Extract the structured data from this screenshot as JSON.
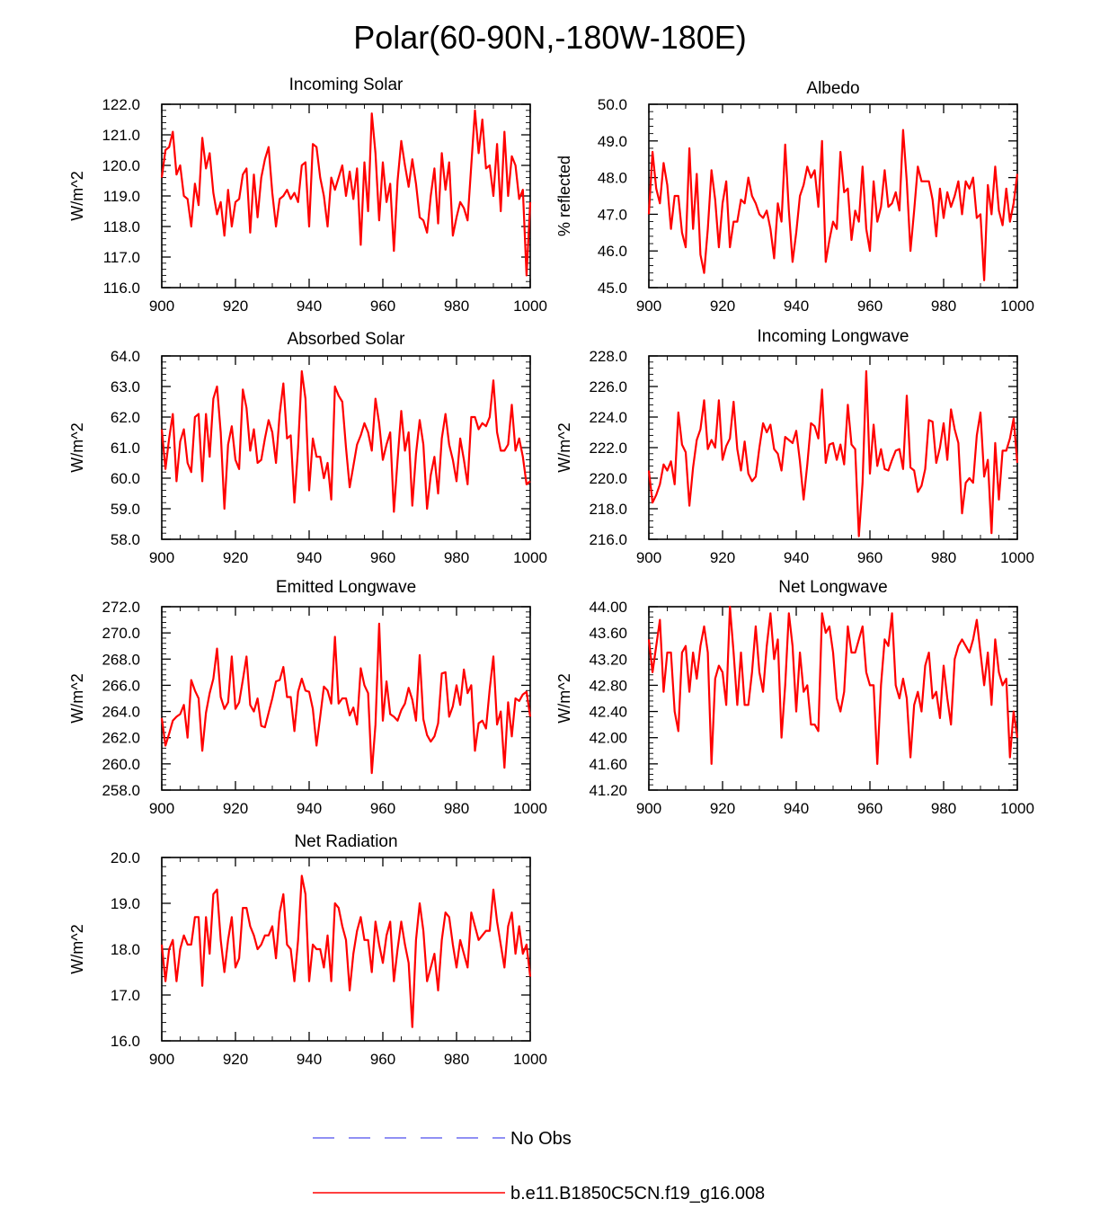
{
  "figure": {
    "title": "Polar(60-90N,-180W-180E)",
    "series_color": "#ff0000",
    "obs_color": "#6c6cf0"
  },
  "legend": {
    "items": [
      {
        "label": "No Obs",
        "style": "dashed",
        "color": "#6c6cf0"
      },
      {
        "label": "b.e11.B1850C5CN.f19_g16.008",
        "style": "solid",
        "color": "#ff0000"
      }
    ]
  },
  "chart_data": [
    {
      "type": "line",
      "title": "Incoming Solar",
      "xlabel": "",
      "ylabel": "W/m^2",
      "xlim": [
        900,
        1000
      ],
      "ylim": [
        116,
        122
      ],
      "yticks": [
        "116.0",
        "117.0",
        "118.0",
        "119.0",
        "120.0",
        "121.0",
        "122.0"
      ],
      "xticks": [
        "900",
        "920",
        "940",
        "960",
        "980",
        "1000"
      ],
      "series": [
        {
          "name": "b.e11.B1850C5CN.f19_g16.008",
          "x_start": 900,
          "x_step": 1,
          "values": [
            119.6,
            120.5,
            120.6,
            121.1,
            119.7,
            120.0,
            119.0,
            118.9,
            118.0,
            119.4,
            118.7,
            120.9,
            119.9,
            120.4,
            119.1,
            118.4,
            118.8,
            117.7,
            119.2,
            118.0,
            118.8,
            118.9,
            119.7,
            119.9,
            117.8,
            119.7,
            118.3,
            119.6,
            120.2,
            120.6,
            119.1,
            118.0,
            118.9,
            119.0,
            119.2,
            118.9,
            119.1,
            118.8,
            120.0,
            120.1,
            118.0,
            120.7,
            120.6,
            119.6,
            119.0,
            118.0,
            119.6,
            119.2,
            119.6,
            120.0,
            119.0,
            119.8,
            118.9,
            119.9,
            117.4,
            120.1,
            118.5,
            121.7,
            120.4,
            118.2,
            120.1,
            118.8,
            119.4,
            117.2,
            119.5,
            120.8,
            120.0,
            119.3,
            120.2,
            119.4,
            118.3,
            118.2,
            117.8,
            119.0,
            119.9,
            118.1,
            120.4,
            119.2,
            120.1,
            117.7,
            118.3,
            118.8,
            118.6,
            118.2,
            120.0,
            121.8,
            120.4,
            121.5,
            119.9,
            120.0,
            119.0,
            120.7,
            118.5,
            121.1,
            119.0,
            120.3,
            120.0,
            118.9,
            119.2,
            116.4,
            118.8
          ]
        }
      ]
    },
    {
      "type": "line",
      "title": "Albedo",
      "xlabel": "",
      "ylabel": "% reflected",
      "xlim": [
        900,
        1000
      ],
      "ylim": [
        45,
        50
      ],
      "yticks": [
        "45.0",
        "46.0",
        "47.0",
        "48.0",
        "49.0",
        "50.0"
      ],
      "xticks": [
        "900",
        "920",
        "940",
        "960",
        "980",
        "1000"
      ],
      "series": [
        {
          "name": "b.e11.B1850C5CN.f19_g16.008",
          "x_start": 900,
          "x_step": 1,
          "values": [
            47.0,
            48.7,
            47.7,
            47.3,
            48.4,
            47.8,
            46.6,
            47.5,
            47.5,
            46.5,
            46.1,
            48.8,
            46.6,
            48.1,
            45.9,
            45.4,
            46.6,
            48.2,
            47.4,
            46.1,
            47.3,
            47.9,
            46.1,
            46.8,
            46.8,
            47.4,
            47.3,
            48.0,
            47.5,
            47.3,
            47.0,
            46.9,
            47.1,
            46.6,
            45.8,
            47.3,
            46.8,
            48.9,
            47.1,
            45.7,
            46.5,
            47.5,
            47.8,
            48.3,
            48.0,
            48.2,
            47.2,
            49.0,
            45.7,
            46.3,
            46.8,
            46.6,
            48.7,
            47.6,
            47.7,
            46.3,
            47.1,
            46.8,
            48.3,
            46.6,
            46.0,
            47.9,
            46.8,
            47.2,
            48.2,
            47.2,
            47.3,
            47.6,
            47.1,
            49.3,
            47.9,
            46.0,
            47.1,
            48.3,
            47.9,
            47.9,
            47.9,
            47.4,
            46.4,
            47.7,
            46.9,
            47.6,
            47.2,
            47.5,
            47.9,
            47.0,
            47.9,
            47.7,
            48.0,
            46.9,
            47.0,
            45.2,
            47.8,
            47.0,
            48.3,
            47.1,
            46.7,
            47.7,
            46.8,
            47.3,
            48.1
          ]
        }
      ]
    },
    {
      "type": "line",
      "title": "Absorbed Solar",
      "xlabel": "",
      "ylabel": "W/m^2",
      "xlim": [
        900,
        1000
      ],
      "ylim": [
        58,
        64
      ],
      "yticks": [
        "58.0",
        "59.0",
        "60.0",
        "61.0",
        "62.0",
        "63.0",
        "64.0"
      ],
      "xticks": [
        "900",
        "920",
        "940",
        "960",
        "980",
        "1000"
      ],
      "series": [
        {
          "name": "b.e11.B1850C5CN.f19_g16.008",
          "x_start": 900,
          "x_step": 1,
          "values": [
            61.6,
            60.3,
            61.3,
            62.1,
            59.9,
            61.2,
            61.6,
            60.5,
            60.2,
            62.0,
            62.1,
            59.9,
            62.1,
            60.7,
            62.6,
            63.0,
            61.5,
            59.0,
            61.1,
            61.7,
            60.6,
            60.3,
            62.9,
            62.3,
            60.9,
            61.6,
            60.5,
            60.6,
            61.3,
            61.9,
            61.5,
            60.5,
            62.1,
            63.1,
            61.3,
            61.4,
            59.2,
            61.0,
            63.5,
            62.6,
            59.6,
            61.3,
            60.7,
            60.7,
            60.0,
            60.5,
            59.3,
            63.0,
            62.7,
            62.5,
            61.0,
            59.7,
            60.4,
            61.1,
            61.4,
            61.8,
            61.5,
            60.9,
            62.6,
            61.8,
            60.6,
            61.1,
            61.5,
            58.9,
            60.6,
            62.2,
            60.9,
            61.5,
            59.1,
            60.8,
            61.9,
            61.1,
            59.0,
            60.1,
            60.7,
            59.5,
            61.3,
            62.1,
            61.1,
            60.6,
            59.9,
            61.3,
            60.6,
            59.8,
            62.0,
            62.0,
            61.6,
            61.8,
            61.7,
            62.0,
            63.2,
            61.5,
            60.9,
            60.9,
            61.1,
            62.4,
            60.9,
            61.3,
            60.7,
            59.8,
            59.9
          ]
        }
      ]
    },
    {
      "type": "line",
      "title": "Incoming Longwave",
      "xlabel": "",
      "ylabel": "W/m^2",
      "xlim": [
        900,
        1000
      ],
      "ylim": [
        216,
        228
      ],
      "yticks": [
        "216.0",
        "218.0",
        "220.0",
        "222.0",
        "224.0",
        "226.0",
        "228.0"
      ],
      "xticks": [
        "900",
        "920",
        "940",
        "960",
        "980",
        "1000"
      ],
      "series": [
        {
          "name": "b.e11.B1850C5CN.f19_g16.008",
          "x_start": 900,
          "x_step": 1,
          "values": [
            220.5,
            218.4,
            218.9,
            219.6,
            220.9,
            220.5,
            221.1,
            219.6,
            224.3,
            222.2,
            221.7,
            218.2,
            220.7,
            222.5,
            223.2,
            225.1,
            221.9,
            222.5,
            222.0,
            225.1,
            221.2,
            222.1,
            222.6,
            225.0,
            221.9,
            220.5,
            222.4,
            220.3,
            219.8,
            220.1,
            222.0,
            223.6,
            223.0,
            223.5,
            221.9,
            221.6,
            220.5,
            222.7,
            222.5,
            222.3,
            223.1,
            221.1,
            218.6,
            220.9,
            223.6,
            223.4,
            222.6,
            225.8,
            221.0,
            222.2,
            222.3,
            221.2,
            222.2,
            220.9,
            224.8,
            222.2,
            221.9,
            216.2,
            219.7,
            227.0,
            220.3,
            223.5,
            220.8,
            221.9,
            220.6,
            220.5,
            221.2,
            221.8,
            221.9,
            220.6,
            225.4,
            220.7,
            220.5,
            219.1,
            219.5,
            220.6,
            223.8,
            223.7,
            221.0,
            222.0,
            223.6,
            221.2,
            224.5,
            223.2,
            222.3,
            217.7,
            219.7,
            220.0,
            219.7,
            222.8,
            224.3,
            220.1,
            221.2,
            216.4,
            222.3,
            218.6,
            221.8,
            221.8,
            222.6,
            223.9,
            221.0
          ]
        }
      ]
    },
    {
      "type": "line",
      "title": "Emitted Longwave",
      "xlabel": "",
      "ylabel": "W/m^2",
      "xlim": [
        900,
        1000
      ],
      "ylim": [
        258,
        272
      ],
      "yticks": [
        "258.0",
        "260.0",
        "262.0",
        "264.0",
        "266.0",
        "268.0",
        "270.0",
        "272.0"
      ],
      "xticks": [
        "900",
        "920",
        "940",
        "960",
        "980",
        "1000"
      ],
      "series": [
        {
          "name": "b.e11.B1850C5CN.f19_g16.008",
          "x_start": 900,
          "x_step": 1,
          "values": [
            263.5,
            261.4,
            262.3,
            263.3,
            263.6,
            263.8,
            264.5,
            262.0,
            266.4,
            265.6,
            265.0,
            261.0,
            263.9,
            265.4,
            266.5,
            268.8,
            265.1,
            264.2,
            264.7,
            268.2,
            264.2,
            264.7,
            266.4,
            268.2,
            264.5,
            264.0,
            265.0,
            262.9,
            262.8,
            263.9,
            265.0,
            266.3,
            266.4,
            267.4,
            265.1,
            265.1,
            262.5,
            265.5,
            266.5,
            265.6,
            265.5,
            264.2,
            261.4,
            263.6,
            265.9,
            265.6,
            264.6,
            269.7,
            264.6,
            265.0,
            265.0,
            263.7,
            264.3,
            263.0,
            267.3,
            266.0,
            265.4,
            259.3,
            263.0,
            270.7,
            263.3,
            266.3,
            263.8,
            263.6,
            263.3,
            264.1,
            264.6,
            265.8,
            264.9,
            263.3,
            268.3,
            263.4,
            262.2,
            261.7,
            262.1,
            263.1,
            266.9,
            267.0,
            263.6,
            264.4,
            266.0,
            264.5,
            267.2,
            265.4,
            266.0,
            261.0,
            263.1,
            263.3,
            262.7,
            265.7,
            268.2,
            263.0,
            264.0,
            259.7,
            264.7,
            262.1,
            265.0,
            264.8,
            265.3,
            265.5,
            263.6
          ]
        }
      ]
    },
    {
      "type": "line",
      "title": "Net Longwave",
      "xlabel": "",
      "ylabel": "W/m^2",
      "xlim": [
        900,
        1000
      ],
      "ylim": [
        41.2,
        44.0
      ],
      "yticks": [
        "41.20",
        "41.60",
        "42.00",
        "42.40",
        "42.80",
        "43.20",
        "43.60",
        "44.00"
      ],
      "xticks": [
        "900",
        "920",
        "940",
        "960",
        "980",
        "1000"
      ],
      "series": [
        {
          "name": "b.e11.B1850C5CN.f19_g16.008",
          "x_start": 900,
          "x_step": 1,
          "values": [
            43.5,
            43.0,
            43.4,
            43.8,
            42.7,
            43.3,
            43.3,
            42.4,
            42.1,
            43.3,
            43.4,
            42.7,
            43.3,
            42.9,
            43.4,
            43.7,
            43.3,
            41.6,
            42.9,
            43.1,
            43.0,
            42.5,
            44.0,
            43.3,
            42.5,
            43.3,
            42.5,
            42.5,
            43.0,
            43.7,
            43.0,
            42.7,
            43.4,
            43.9,
            43.2,
            43.5,
            42.0,
            42.8,
            43.9,
            43.4,
            42.4,
            43.3,
            42.7,
            42.8,
            42.2,
            42.2,
            42.1,
            43.9,
            43.6,
            43.7,
            43.3,
            42.6,
            42.4,
            42.7,
            43.7,
            43.3,
            43.3,
            43.5,
            43.7,
            43.0,
            42.8,
            42.8,
            41.6,
            42.8,
            43.5,
            43.4,
            43.9,
            42.8,
            42.6,
            42.9,
            42.6,
            41.7,
            42.5,
            42.7,
            42.4,
            43.1,
            43.3,
            42.6,
            42.7,
            42.3,
            43.1,
            42.6,
            42.2,
            43.2,
            43.4,
            43.5,
            43.4,
            43.3,
            43.5,
            43.8,
            43.3,
            42.8,
            43.3,
            42.5,
            43.5,
            43.0,
            42.8,
            42.9,
            41.7,
            42.4,
            42.0
          ]
        }
      ]
    },
    {
      "type": "line",
      "title": "Net Radiation",
      "xlabel": "",
      "ylabel": "W/m^2",
      "xlim": [
        900,
        1000
      ],
      "ylim": [
        16,
        20
      ],
      "yticks": [
        "16.0",
        "17.0",
        "18.0",
        "19.0",
        "20.0"
      ],
      "xticks": [
        "900",
        "920",
        "940",
        "960",
        "980",
        "1000"
      ],
      "series": [
        {
          "name": "b.e11.B1850C5CN.f19_g16.008",
          "x_start": 900,
          "x_step": 1,
          "values": [
            18.1,
            17.3,
            18.0,
            18.2,
            17.3,
            18.0,
            18.3,
            18.1,
            18.1,
            18.7,
            18.7,
            17.2,
            18.7,
            17.9,
            19.2,
            19.3,
            18.2,
            17.5,
            18.2,
            18.7,
            17.6,
            17.8,
            18.9,
            18.9,
            18.5,
            18.3,
            18.0,
            18.1,
            18.3,
            18.3,
            18.5,
            17.8,
            18.8,
            19.2,
            18.1,
            18.0,
            17.3,
            18.2,
            19.6,
            19.2,
            17.3,
            18.1,
            18.0,
            18.0,
            17.6,
            18.3,
            17.3,
            19.0,
            18.9,
            18.5,
            18.2,
            17.1,
            17.9,
            18.4,
            18.7,
            18.2,
            18.2,
            17.5,
            18.6,
            18.1,
            17.7,
            18.3,
            18.6,
            17.3,
            18.0,
            18.6,
            18.1,
            17.7,
            16.3,
            18.2,
            19.0,
            18.4,
            17.3,
            17.6,
            17.9,
            17.1,
            18.2,
            18.8,
            18.7,
            18.1,
            17.6,
            18.2,
            17.9,
            17.6,
            18.8,
            18.5,
            18.2,
            18.3,
            18.4,
            18.4,
            19.3,
            18.6,
            18.1,
            17.6,
            18.5,
            18.8,
            17.9,
            18.5,
            17.9,
            18.1,
            17.4
          ]
        }
      ]
    }
  ]
}
